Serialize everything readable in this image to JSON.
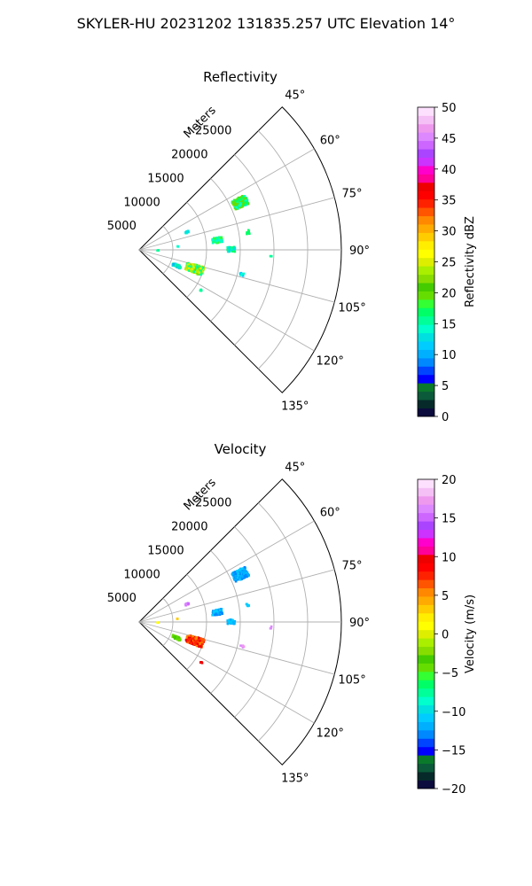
{
  "suptitle": "SKYLER-HU  20231202  131835.257 UTC Elevation 14°",
  "panel_common": {
    "range_unit_label": "Meters",
    "range_ticks": [
      "5000",
      "10000",
      "15000",
      "20000",
      "25000"
    ],
    "azimuth_ticks": [
      "45°",
      "60°",
      "75°",
      "90°",
      "105°",
      "120°",
      "135°"
    ]
  },
  "chart_data": [
    {
      "type": "polar-sector-heatmap",
      "title": "Reflectivity",
      "theta_range_deg": [
        45,
        135
      ],
      "r_range_m": [
        0,
        30000
      ],
      "r_ticks": [
        5000,
        10000,
        15000,
        20000,
        25000
      ],
      "theta_ticks": [
        45,
        60,
        75,
        90,
        105,
        120,
        135
      ],
      "grid": true,
      "colorbar": {
        "label": "Reflectivity dBZ",
        "ticks": [
          "0",
          "5",
          "10",
          "15",
          "20",
          "25",
          "30",
          "35",
          "40",
          "45",
          "50"
        ],
        "vmin": 0,
        "vmax": 50,
        "colors": [
          "#0b0b3d",
          "#062a2a",
          "#0b5a3a",
          "#0a7a2a",
          "#0000ff",
          "#0044ff",
          "#0088ff",
          "#00b0ff",
          "#00ccff",
          "#00e0e0",
          "#00ffcc",
          "#00ff99",
          "#00ff66",
          "#33ff33",
          "#66dd00",
          "#44cc00",
          "#88dd00",
          "#aaee00",
          "#ddee00",
          "#ffff00",
          "#ffee00",
          "#ffcc00",
          "#ffaa00",
          "#ff8800",
          "#ff5500",
          "#ff2200",
          "#ff0000",
          "#ee0000",
          "#ff0099",
          "#ff00cc",
          "#cc33ff",
          "#aa44ff",
          "#cc66ff",
          "#dd88ff",
          "#ee99ee",
          "#f5c0f5",
          "#fde0fd"
        ]
      },
      "echoes": [
        {
          "az": 64,
          "r": 16500,
          "extent_deg": 5,
          "extent_m": 2200,
          "values": [
            14,
            17,
            19
          ],
          "n": 180
        },
        {
          "az": 82,
          "r": 11500,
          "extent_deg": 4,
          "extent_m": 1500,
          "values": [
            14,
            16,
            18
          ],
          "n": 70
        },
        {
          "az": 89,
          "r": 13500,
          "extent_deg": 3,
          "extent_m": 1100,
          "values": [
            13,
            15,
            17
          ],
          "n": 50
        },
        {
          "az": 68,
          "r": 7500,
          "extent_deg": 2,
          "extent_m": 500,
          "values": [
            13,
            14
          ],
          "n": 14
        },
        {
          "az": 108,
          "r": 8500,
          "extent_deg": 8,
          "extent_m": 2600,
          "values": [
            16,
            20,
            23,
            25
          ],
          "n": 280
        },
        {
          "az": 112,
          "r": 5800,
          "extent_deg": 4,
          "extent_m": 1300,
          "values": [
            10,
            13,
            15
          ],
          "n": 60
        },
        {
          "az": 103,
          "r": 15500,
          "extent_deg": 1.5,
          "extent_m": 600,
          "values": [
            12,
            14
          ],
          "n": 8
        },
        {
          "az": 123,
          "r": 10800,
          "extent_deg": 1,
          "extent_m": 300,
          "values": [
            15
          ],
          "n": 5
        },
        {
          "az": 80,
          "r": 16200,
          "extent_deg": 2,
          "extent_m": 400,
          "values": [
            17
          ],
          "n": 8
        },
        {
          "az": 88,
          "r": 2600,
          "extent_deg": 1,
          "extent_m": 200,
          "values": [
            15
          ],
          "n": 3
        },
        {
          "az": 83,
          "r": 5600,
          "extent_deg": 1,
          "extent_m": 200,
          "values": [
            14
          ],
          "n": 3
        },
        {
          "az": 92,
          "r": 19400,
          "extent_deg": 1,
          "extent_m": 200,
          "values": [
            16
          ],
          "n": 3
        }
      ]
    },
    {
      "type": "polar-sector-heatmap",
      "title": "Velocity",
      "theta_range_deg": [
        45,
        135
      ],
      "r_range_m": [
        0,
        30000
      ],
      "r_ticks": [
        5000,
        10000,
        15000,
        20000,
        25000
      ],
      "theta_ticks": [
        45,
        60,
        75,
        90,
        105,
        120,
        135
      ],
      "grid": true,
      "colorbar": {
        "label": "Velocity (m/s)",
        "ticks": [
          "−20",
          "−15",
          "−10",
          "−5",
          "0",
          "5",
          "10",
          "15",
          "20"
        ],
        "vmin": -20,
        "vmax": 20,
        "colors": [
          "#0b0b3d",
          "#062a2a",
          "#0b5a3a",
          "#0a7a2a",
          "#0000ff",
          "#0044ff",
          "#0088ff",
          "#00b0ff",
          "#00ccff",
          "#00e0e0",
          "#00ffcc",
          "#00ff99",
          "#00ff66",
          "#33ff33",
          "#66dd00",
          "#44cc00",
          "#88dd00",
          "#aaee00",
          "#ddee00",
          "#ffff00",
          "#ffee00",
          "#ffcc00",
          "#ffaa00",
          "#ff8800",
          "#ff5500",
          "#ff2200",
          "#ff0000",
          "#ee0000",
          "#ff0099",
          "#ff00cc",
          "#cc33ff",
          "#aa44ff",
          "#cc66ff",
          "#dd88ff",
          "#ee99ee",
          "#f5c0f5",
          "#fde0fd"
        ]
      },
      "echoes": [
        {
          "az": 64,
          "r": 16500,
          "extent_deg": 5,
          "extent_m": 2200,
          "values": [
            -13,
            -12,
            -11
          ],
          "n": 180
        },
        {
          "az": 82,
          "r": 11500,
          "extent_deg": 4,
          "extent_m": 1500,
          "values": [
            -13,
            -12,
            -11
          ],
          "n": 70
        },
        {
          "az": 89,
          "r": 13500,
          "extent_deg": 3,
          "extent_m": 1100,
          "values": [
            -12,
            -11
          ],
          "n": 50
        },
        {
          "az": 68,
          "r": 7500,
          "extent_deg": 2,
          "extent_m": 500,
          "values": [
            15,
            16
          ],
          "n": 14
        },
        {
          "az": 108,
          "r": 8500,
          "extent_deg": 8,
          "extent_m": 2600,
          "values": [
            5,
            6,
            8,
            10
          ],
          "n": 280
        },
        {
          "az": 112,
          "r": 5800,
          "extent_deg": 4,
          "extent_m": 1300,
          "values": [
            -4,
            -3,
            -2
          ],
          "n": 60
        },
        {
          "az": 103,
          "r": 15500,
          "extent_deg": 1.5,
          "extent_m": 600,
          "values": [
            16,
            17
          ],
          "n": 8
        },
        {
          "az": 123,
          "r": 10800,
          "extent_deg": 1,
          "extent_m": 300,
          "values": [
            10
          ],
          "n": 5
        },
        {
          "az": 80,
          "r": 16200,
          "extent_deg": 2,
          "extent_m": 400,
          "values": [
            -11
          ],
          "n": 8
        },
        {
          "az": 88,
          "r": 2600,
          "extent_deg": 1,
          "extent_m": 200,
          "values": [
            1
          ],
          "n": 3
        },
        {
          "az": 83,
          "r": 5600,
          "extent_deg": 1,
          "extent_m": 200,
          "values": [
            3
          ],
          "n": 3
        },
        {
          "az": 92,
          "r": 19400,
          "extent_deg": 1,
          "extent_m": 200,
          "values": [
            16
          ],
          "n": 3
        }
      ]
    }
  ]
}
